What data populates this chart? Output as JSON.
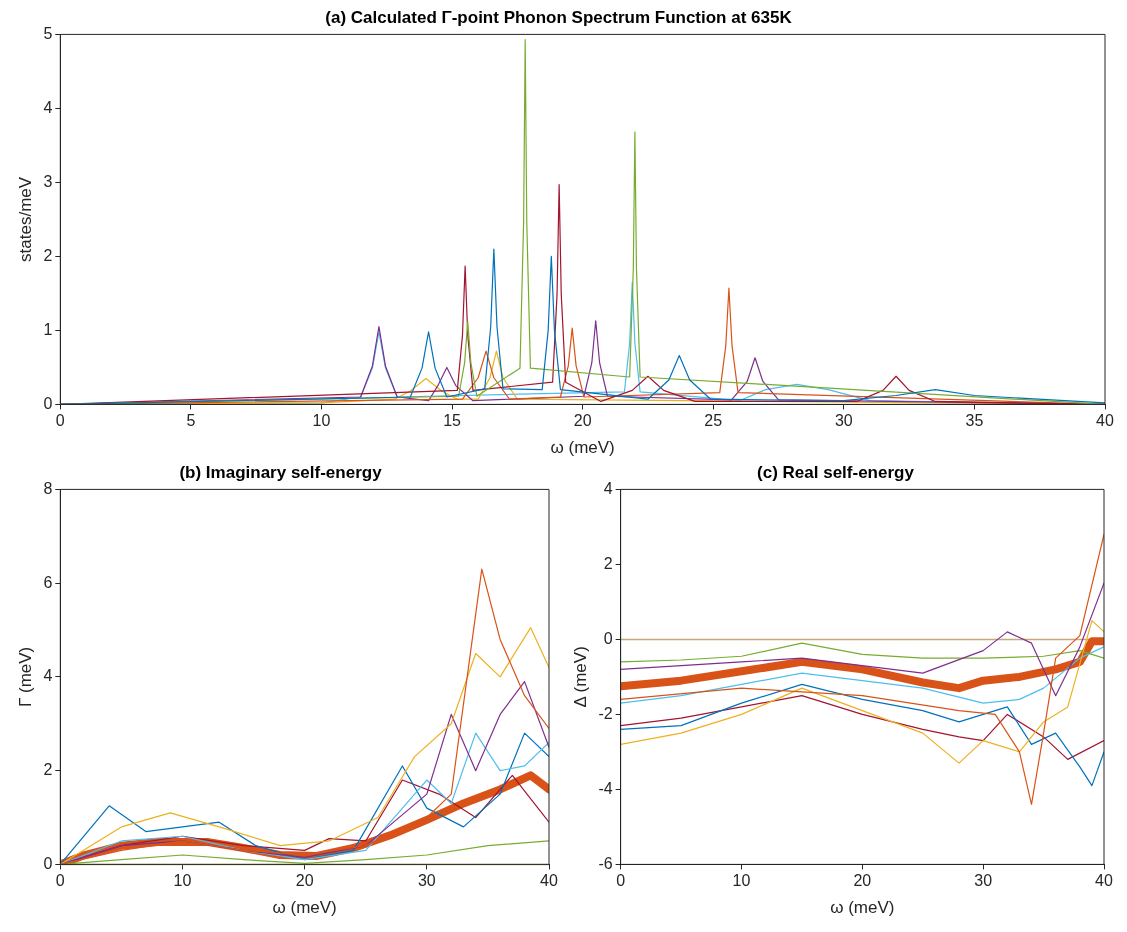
{
  "chart_data": [
    {
      "type": "line",
      "title": "(a) Calculated Γ-point Phonon Spectrum Function at 635K",
      "xlabel": "ω (meV)",
      "ylabel": "states/meV",
      "xlim": [
        0,
        40
      ],
      "xticks": [
        0,
        5,
        10,
        15,
        20,
        25,
        30,
        35,
        40
      ],
      "ylim": [
        0,
        5
      ],
      "yticks": [
        0,
        1,
        2,
        3,
        4,
        5
      ],
      "grid": false,
      "legend": false,
      "marker": "none",
      "line_style": "solid",
      "series": [
        {
          "color": "#0072bd",
          "x": [
            0,
            13.4,
            13.85,
            14.1,
            14.35,
            14.8,
            16.25,
            16.48,
            16.6,
            16.72,
            16.95,
            18.45,
            18.68,
            18.8,
            18.92,
            19.15,
            22.5,
            23.3,
            23.7,
            24.1,
            24.9,
            30,
            32,
            33.5,
            35,
            40
          ],
          "values": [
            0,
            0.1,
            0.49,
            0.98,
            0.49,
            0.1,
            0.21,
            1.05,
            2.1,
            1.05,
            0.21,
            0.2,
            1,
            2,
            1,
            0.2,
            0.07,
            0.33,
            0.66,
            0.33,
            0.07,
            0.05,
            0.12,
            0.2,
            0.12,
            0.02
          ]
        },
        {
          "color": "#77ac30",
          "x": [
            0,
            15.25,
            15.48,
            15.6,
            15.72,
            15.95,
            17.6,
            17.74,
            17.8,
            17.86,
            18.0,
            21.8,
            21.94,
            22.0,
            22.06,
            22.2,
            40
          ],
          "values": [
            0,
            0.11,
            0.56,
            1.12,
            0.56,
            0.11,
            0.49,
            2.47,
            4.93,
            2.47,
            0.49,
            0.37,
            1.84,
            3.68,
            1.84,
            0.37,
            0
          ]
        },
        {
          "color": "#a2142f",
          "x": [
            0,
            15.2,
            15.4,
            15.5,
            15.6,
            15.8,
            18.85,
            19.02,
            19.1,
            19.18,
            19.35,
            20.7,
            21.9,
            22.5,
            23.1,
            24.3,
            30.5,
            31.5,
            32,
            32.5,
            33.5,
            40
          ],
          "values": [
            0,
            0.19,
            0.94,
            1.87,
            0.94,
            0.19,
            0.3,
            1.49,
            2.97,
            1.49,
            0.3,
            0.04,
            0.19,
            0.38,
            0.19,
            0.04,
            0.04,
            0.19,
            0.38,
            0.19,
            0.04,
            0
          ]
        },
        {
          "color": "#d95319",
          "x": [
            0,
            15.4,
            16.0,
            16.3,
            16.6,
            17.2,
            19.15,
            19.45,
            19.6,
            19.75,
            20.05,
            25.25,
            25.48,
            25.6,
            25.72,
            25.95,
            40
          ],
          "values": [
            0,
            0.07,
            0.36,
            0.72,
            0.36,
            0.07,
            0.1,
            0.52,
            1.03,
            0.52,
            0.1,
            0.16,
            0.79,
            1.57,
            0.79,
            0.16,
            0
          ]
        },
        {
          "color": "#7e2f8e",
          "x": [
            0,
            11.5,
            11.95,
            12.2,
            12.45,
            12.9,
            14.1,
            14.45,
            14.8,
            15.15,
            15.8,
            20.05,
            20.35,
            20.5,
            20.65,
            20.95,
            25.7,
            26.3,
            26.6,
            26.9,
            27.5,
            40
          ],
          "values": [
            0,
            0.1,
            0.52,
            1.05,
            0.52,
            0.1,
            0.05,
            0.25,
            0.5,
            0.25,
            0.05,
            0.11,
            0.56,
            1.13,
            0.56,
            0.11,
            0.06,
            0.31,
            0.63,
            0.31,
            0.06,
            0
          ]
        },
        {
          "color": "#edb120",
          "x": [
            0,
            10,
            12.8,
            13.4,
            14.0,
            14.6,
            15.2,
            16.0,
            16.45,
            16.7,
            16.95,
            17.5,
            40
          ],
          "values": [
            0,
            0.02,
            0.07,
            0.18,
            0.35,
            0.18,
            0.07,
            0.07,
            0.36,
            0.72,
            0.36,
            0.07,
            0
          ]
        },
        {
          "color": "#4dbeee",
          "x": [
            0,
            10,
            11.5,
            11.95,
            12.2,
            12.45,
            12.9,
            21.6,
            21.8,
            21.9,
            22.0,
            22.2,
            26,
            27,
            28.2,
            29.4,
            31,
            40
          ],
          "values": [
            0,
            0.02,
            0.1,
            0.49,
            0.98,
            0.49,
            0.1,
            0.17,
            0.83,
            1.65,
            0.83,
            0.17,
            0.05,
            0.2,
            0.27,
            0.2,
            0.05,
            0
          ]
        }
      ]
    },
    {
      "type": "line",
      "title": "(b) Imaginary self-energy",
      "xlabel": "ω (meV)",
      "ylabel": "Γ (meV)",
      "xlim": [
        0,
        40
      ],
      "xticks": [
        0,
        10,
        20,
        30,
        40
      ],
      "ylim": [
        0,
        8
      ],
      "yticks": [
        0,
        2,
        4,
        6,
        8
      ],
      "grid": false,
      "legend": false,
      "marker": "none",
      "line_style": "solid",
      "ref_lines": [
        {
          "axis": "y",
          "value": 0,
          "color": "#c9a878"
        }
      ],
      "series": [
        {
          "color": "#d95319",
          "x": [
            0,
            5,
            10,
            15,
            20,
            25,
            30,
            32,
            34.5,
            36,
            38,
            40
          ],
          "values": [
            0,
            0.3,
            0.5,
            0.3,
            0.2,
            0.4,
            1.0,
            1.5,
            6.3,
            4.8,
            3.6,
            2.9
          ]
        },
        {
          "color": "#edb120",
          "x": [
            0,
            5,
            9,
            13,
            18,
            22,
            26,
            29,
            32,
            34,
            36,
            38.5,
            40
          ],
          "values": [
            0,
            0.8,
            1.1,
            0.8,
            0.4,
            0.5,
            1.0,
            2.3,
            3.0,
            4.5,
            4.0,
            5.05,
            4.2
          ]
        },
        {
          "color": "#7e2f8e",
          "x": [
            0,
            5,
            10,
            15,
            20,
            25,
            30,
            32,
            34,
            36,
            38,
            40
          ],
          "values": [
            0,
            0.4,
            0.5,
            0.3,
            0.15,
            0.4,
            1.5,
            3.2,
            2.0,
            3.2,
            3.9,
            2.5
          ]
        },
        {
          "color": "#4dbeee",
          "x": [
            0,
            5,
            10,
            15,
            20,
            25,
            30,
            32,
            34,
            36,
            38,
            40
          ],
          "values": [
            0,
            0.5,
            0.6,
            0.3,
            0.1,
            0.3,
            1.8,
            1.3,
            2.8,
            2.0,
            2.1,
            2.6
          ]
        },
        {
          "color": "#0072bd",
          "x": [
            0,
            4,
            7,
            10,
            13,
            16,
            20,
            24,
            28,
            30,
            33,
            36,
            38,
            40
          ],
          "values": [
            0,
            1.25,
            0.7,
            0.8,
            0.9,
            0.4,
            0.1,
            0.3,
            2.1,
            1.2,
            0.8,
            1.5,
            2.8,
            2.3
          ]
        },
        {
          "color": "#a2142f",
          "x": [
            0,
            5,
            10,
            15,
            20,
            22,
            25,
            28,
            31,
            34,
            37,
            40
          ],
          "values": [
            0,
            0.4,
            0.6,
            0.4,
            0.3,
            0.55,
            0.5,
            1.8,
            1.5,
            1.0,
            1.9,
            0.9
          ]
        },
        {
          "color": "#77ac30",
          "x": [
            0,
            5,
            10,
            15,
            20,
            25,
            30,
            35,
            40
          ],
          "values": [
            0,
            0.1,
            0.2,
            0.1,
            0.02,
            0.1,
            0.2,
            0.4,
            0.5
          ]
        },
        {
          "color": "#d95319",
          "x": [
            0,
            2,
            5,
            8,
            12,
            15,
            18,
            21,
            24,
            27,
            30,
            33,
            36,
            38.5,
            40
          ],
          "values": [
            0,
            0.2,
            0.4,
            0.48,
            0.48,
            0.35,
            0.2,
            0.18,
            0.35,
            0.62,
            0.95,
            1.3,
            1.6,
            1.9,
            1.6
          ]
        }
      ]
    },
    {
      "type": "line",
      "title": "(c) Real self-energy",
      "xlabel": "ω (meV)",
      "ylabel": "Δ (meV)",
      "xlim": [
        0,
        40
      ],
      "xticks": [
        0,
        10,
        20,
        30,
        40
      ],
      "ylim": [
        -6,
        4
      ],
      "yticks": [
        -6,
        -4,
        -2,
        0,
        2,
        4
      ],
      "grid": false,
      "legend": false,
      "marker": "none",
      "line_style": "solid",
      "ref_lines": [
        {
          "axis": "y",
          "value": 0,
          "color": "#c9a878"
        }
      ],
      "series": [
        {
          "color": "#d95319",
          "x": [
            0,
            10,
            20,
            28,
            31,
            33,
            34,
            35,
            36,
            38,
            40
          ],
          "values": [
            -1.6,
            -1.3,
            -1.5,
            -1.9,
            -2.0,
            -3.0,
            -4.4,
            -2.5,
            -0.5,
            0.1,
            2.8
          ]
        },
        {
          "color": "#edb120",
          "x": [
            0,
            5,
            10,
            15,
            20,
            25,
            28,
            30,
            33,
            35,
            37,
            39,
            40
          ],
          "values": [
            -2.8,
            -2.5,
            -2.0,
            -1.3,
            -1.9,
            -2.5,
            -3.3,
            -2.7,
            -3.0,
            -2.2,
            -1.8,
            0.5,
            0.2
          ]
        },
        {
          "color": "#7e2f8e",
          "x": [
            0,
            5,
            10,
            15,
            20,
            25,
            30,
            32,
            34,
            36,
            38,
            40
          ],
          "values": [
            -0.8,
            -0.7,
            -0.6,
            -0.5,
            -0.7,
            -0.9,
            -0.3,
            0.2,
            -0.1,
            -1.5,
            -0.2,
            1.5
          ]
        },
        {
          "color": "#0072bd",
          "x": [
            0,
            5,
            10,
            15,
            20,
            25,
            28,
            30,
            32,
            34,
            36,
            38,
            39,
            40
          ],
          "values": [
            -2.4,
            -2.3,
            -1.7,
            -1.2,
            -1.6,
            -1.9,
            -2.2,
            -2.0,
            -1.8,
            -2.8,
            -2.5,
            -3.4,
            -3.9,
            -3.0
          ]
        },
        {
          "color": "#a2142f",
          "x": [
            0,
            5,
            10,
            15,
            20,
            25,
            28,
            30,
            32,
            35,
            37,
            40
          ],
          "values": [
            -2.3,
            -2.1,
            -1.8,
            -1.5,
            -2.0,
            -2.4,
            -2.6,
            -2.7,
            -2.0,
            -2.6,
            -3.2,
            -2.7
          ]
        },
        {
          "color": "#77ac30",
          "x": [
            0,
            5,
            10,
            15,
            20,
            25,
            30,
            35,
            38,
            40
          ],
          "values": [
            -0.6,
            -0.55,
            -0.45,
            -0.1,
            -0.4,
            -0.5,
            -0.5,
            -0.45,
            -0.3,
            -0.5
          ]
        },
        {
          "color": "#4dbeee",
          "x": [
            0,
            5,
            10,
            15,
            20,
            25,
            30,
            33,
            35,
            38,
            40
          ],
          "values": [
            -1.7,
            -1.5,
            -1.2,
            -0.9,
            -1.1,
            -1.3,
            -1.7,
            -1.6,
            -1.3,
            -0.5,
            -0.2
          ]
        },
        {
          "color": "#d95319",
          "x": [
            0,
            5,
            10,
            15,
            20,
            25,
            28,
            30,
            33,
            36,
            38,
            39,
            40
          ],
          "values": [
            -1.25,
            -1.1,
            -0.85,
            -0.6,
            -0.8,
            -1.15,
            -1.3,
            -1.1,
            -1.0,
            -0.8,
            -0.6,
            -0.05,
            -0.05
          ]
        }
      ]
    }
  ]
}
